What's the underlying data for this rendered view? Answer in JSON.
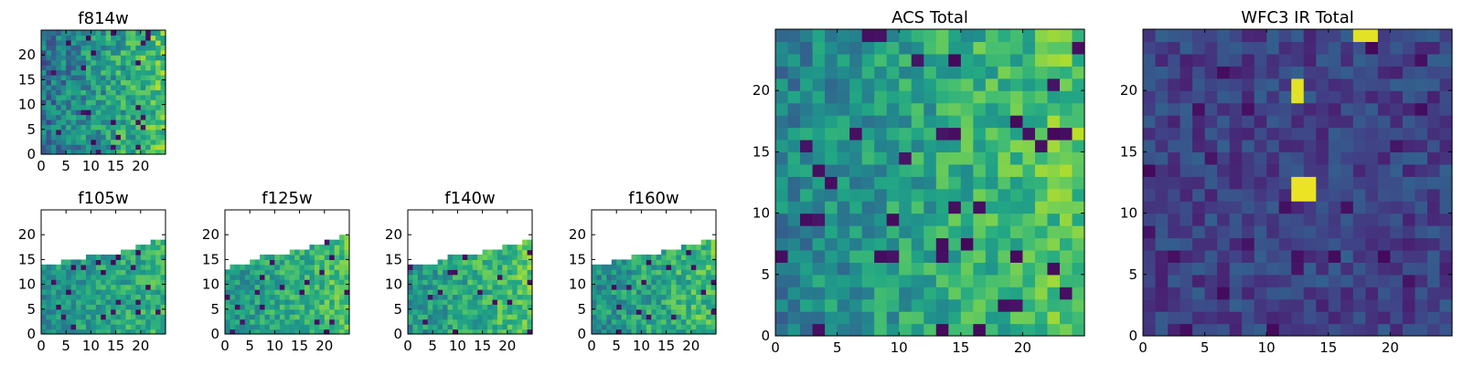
{
  "figure": {
    "description_domain": "astronomy image stamps"
  },
  "chart_data": [
    {
      "type": "heatmap",
      "title": "f814w",
      "grid": [
        25,
        25
      ],
      "xlim": [
        0,
        25
      ],
      "ylim": [
        0,
        25
      ],
      "xticks": [
        0,
        5,
        10,
        15,
        20
      ],
      "yticks": [
        0,
        5,
        10,
        15,
        20
      ],
      "colormap": "viridis",
      "value_range": [
        0,
        1
      ],
      "base_level": 0.55,
      "base_noise": 0.2,
      "gradient_right": 0.35,
      "edge_profile": null,
      "hot_blocks": [],
      "seed": 11
    },
    {
      "type": "heatmap",
      "title": "f105w",
      "grid": [
        25,
        25
      ],
      "xlim": [
        0,
        25
      ],
      "ylim": [
        0,
        25
      ],
      "xticks": [
        0,
        5,
        10,
        15,
        20
      ],
      "yticks": [
        0,
        5,
        10,
        15,
        20
      ],
      "colormap": "viridis",
      "value_range": [
        0,
        1
      ],
      "base_level": 0.58,
      "base_noise": 0.15,
      "gradient_right": 0.15,
      "edge_profile": [
        14,
        14,
        14,
        14,
        15,
        15,
        15,
        15,
        15,
        16,
        16,
        16,
        16,
        16,
        16,
        16,
        17,
        17,
        17,
        18,
        18,
        18,
        19,
        19,
        19
      ],
      "hot_blocks": [],
      "seed": 23
    },
    {
      "type": "heatmap",
      "title": "f125w",
      "grid": [
        25,
        25
      ],
      "xlim": [
        0,
        25
      ],
      "ylim": [
        0,
        25
      ],
      "xticks": [
        0,
        5,
        10,
        15,
        20
      ],
      "yticks": [
        0,
        5,
        10,
        15,
        20
      ],
      "colormap": "viridis",
      "value_range": [
        0,
        1
      ],
      "base_level": 0.62,
      "base_noise": 0.15,
      "gradient_right": 0.2,
      "edge_profile": [
        13,
        14,
        14,
        14,
        14,
        15,
        15,
        16,
        16,
        16,
        16,
        16,
        16,
        17,
        17,
        17,
        17,
        18,
        18,
        18,
        19,
        19,
        19,
        20,
        20
      ],
      "hot_blocks": [],
      "seed": 37
    },
    {
      "type": "heatmap",
      "title": "f140w",
      "grid": [
        25,
        25
      ],
      "xlim": [
        0,
        25
      ],
      "ylim": [
        0,
        25
      ],
      "xticks": [
        0,
        5,
        10,
        15,
        20
      ],
      "yticks": [
        0,
        5,
        10,
        15,
        20
      ],
      "colormap": "viridis",
      "value_range": [
        0,
        1
      ],
      "base_level": 0.62,
      "base_noise": 0.16,
      "gradient_right": 0.22,
      "edge_profile": [
        14,
        14,
        14,
        14,
        14,
        14,
        15,
        15,
        16,
        16,
        16,
        16,
        16,
        16,
        16,
        17,
        17,
        17,
        17,
        18,
        18,
        18,
        18,
        19,
        19
      ],
      "hot_blocks": [],
      "seed": 41
    },
    {
      "type": "heatmap",
      "title": "f160w",
      "grid": [
        25,
        25
      ],
      "xlim": [
        0,
        25
      ],
      "ylim": [
        0,
        25
      ],
      "xticks": [
        0,
        5,
        10,
        15,
        20
      ],
      "yticks": [
        0,
        5,
        10,
        15,
        20
      ],
      "colormap": "viridis",
      "value_range": [
        0,
        1
      ],
      "base_level": 0.6,
      "base_noise": 0.17,
      "gradient_right": 0.22,
      "edge_profile": [
        14,
        14,
        14,
        14,
        15,
        15,
        15,
        15,
        16,
        16,
        16,
        16,
        16,
        16,
        17,
        17,
        17,
        17,
        18,
        18,
        18,
        18,
        19,
        19,
        19
      ],
      "hot_blocks": [],
      "seed": 53
    },
    {
      "type": "heatmap",
      "title": "ACS Total",
      "grid": [
        25,
        25
      ],
      "xlim": [
        0,
        25
      ],
      "ylim": [
        0,
        25
      ],
      "xticks": [
        0,
        5,
        10,
        15,
        20
      ],
      "yticks": [
        0,
        5,
        10,
        15,
        20
      ],
      "colormap": "viridis",
      "value_range": [
        0,
        1
      ],
      "base_level": 0.6,
      "base_noise": 0.16,
      "gradient_right": 0.3,
      "edge_profile": null,
      "hot_blocks": [],
      "seed": 67
    },
    {
      "type": "heatmap",
      "title": "WFC3 IR Total",
      "grid": [
        25,
        25
      ],
      "xlim": [
        0,
        25
      ],
      "ylim": [
        0,
        25
      ],
      "xticks": [
        0,
        5,
        10,
        15,
        20
      ],
      "yticks": [
        0,
        5,
        10,
        15,
        20
      ],
      "colormap": "viridis",
      "value_range": [
        0,
        1
      ],
      "base_level": 0.2,
      "base_noise": 0.11,
      "gradient_right": 0.0,
      "edge_profile": null,
      "hot_blocks": [
        {
          "x0": 12,
          "x1": 14,
          "y0": 11,
          "y1": 13,
          "value": 0.97
        },
        {
          "x0": 12,
          "x1": 13,
          "y0": 19,
          "y1": 21,
          "value": 0.96
        },
        {
          "x0": 17,
          "x1": 19,
          "y0": 24,
          "y1": 25,
          "value": 0.96
        }
      ],
      "seed": 79
    }
  ]
}
